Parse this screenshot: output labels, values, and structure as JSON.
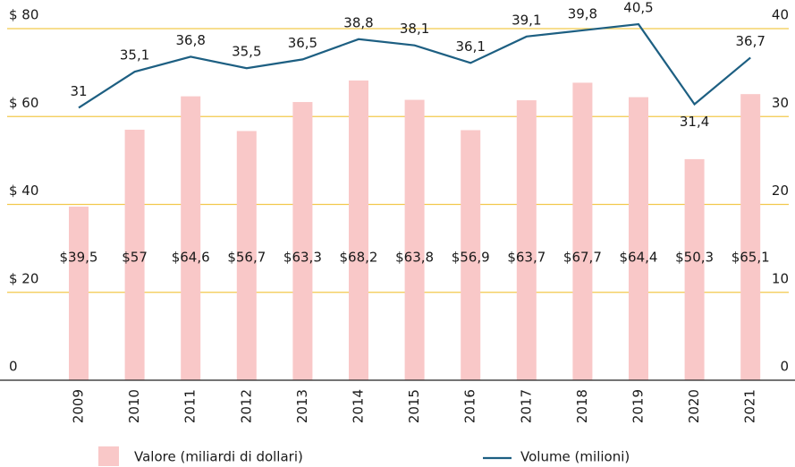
{
  "chart_data": {
    "type": "bar",
    "categories": [
      "2009",
      "2010",
      "2011",
      "2012",
      "2013",
      "2014",
      "2015",
      "2016",
      "2017",
      "2018",
      "2019",
      "2020",
      "2021"
    ],
    "series": [
      {
        "name": "Valore (miliardi di dollari)",
        "type": "bar",
        "color": "#f9c8c8",
        "values": [
          39.5,
          57,
          64.6,
          56.7,
          63.3,
          68.2,
          63.8,
          56.9,
          63.7,
          67.7,
          64.4,
          50.3,
          65.1
        ],
        "value_labels": [
          "$39,5",
          "$57",
          "$64,6",
          "$56,7",
          "$63,3",
          "$68,2",
          "$63,8",
          "$56,9",
          "$63,7",
          "$67,7",
          "$64,4",
          "$50,3",
          "$65,1"
        ]
      },
      {
        "name": "Volume (milioni)",
        "type": "line",
        "axis": "y2",
        "color": "#1d5f82",
        "values": [
          31,
          35.1,
          36.8,
          35.5,
          36.5,
          38.8,
          38.1,
          36.1,
          39.1,
          39.8,
          40.5,
          31.4,
          36.7
        ],
        "value_labels": [
          "31",
          "35,1",
          "36,8",
          "35,5",
          "36,5",
          "38,8",
          "38,1",
          "36,1",
          "39,1",
          "39,8",
          "40,5",
          "31,4",
          "36,7"
        ]
      }
    ],
    "ylim": [
      0,
      80
    ],
    "yticks": [
      0,
      {
        "value": 20,
        "label": "$ 20"
      },
      {
        "value": 40,
        "label": "$ 40"
      },
      {
        "value": 60,
        "label": "$ 60"
      },
      {
        "value": 80,
        "label": "$ 80"
      }
    ],
    "y2lim": [
      0,
      40
    ],
    "y2ticks": [
      0,
      10,
      20,
      30,
      40
    ],
    "grid": true,
    "legend": "bottom"
  }
}
